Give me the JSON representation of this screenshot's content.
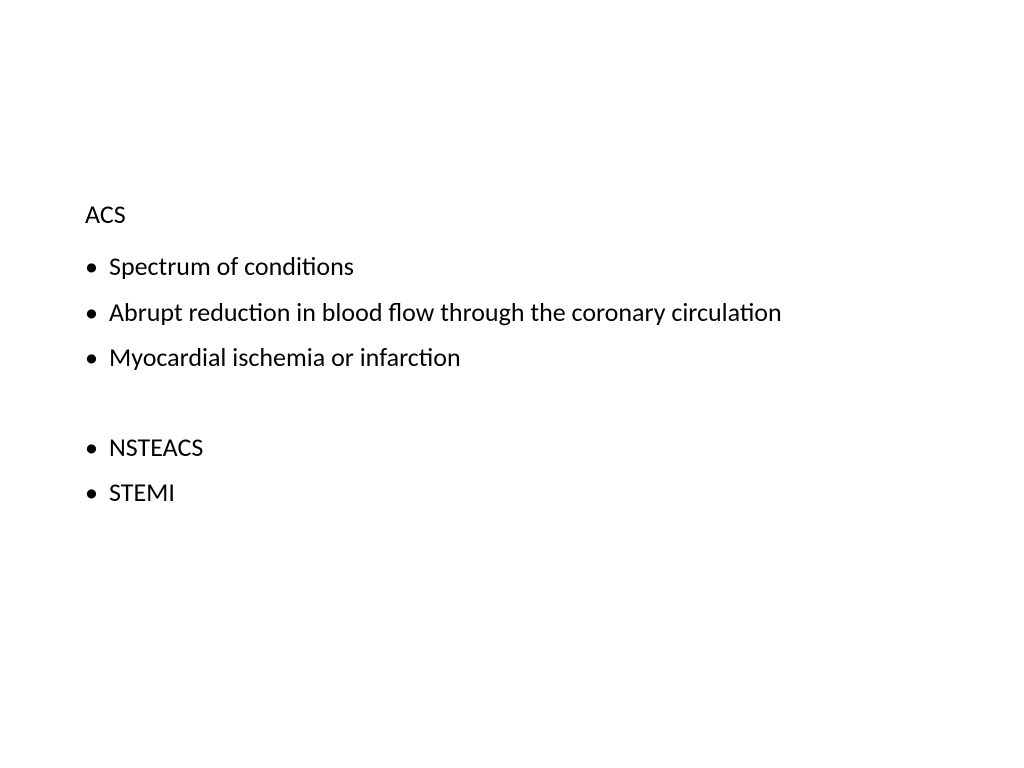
{
  "slide": {
    "heading": "ACS",
    "bullets_group1": [
      "Spectrum of conditions",
      "Abrupt reduction in blood flow through the coronary circulation",
      "Myocardial ischemia or infarction"
    ],
    "bullets_group2": [
      "NSTEACS",
      "STEMI"
    ],
    "text_color": "#000000",
    "background_color": "#ffffff",
    "font_size": 26
  }
}
